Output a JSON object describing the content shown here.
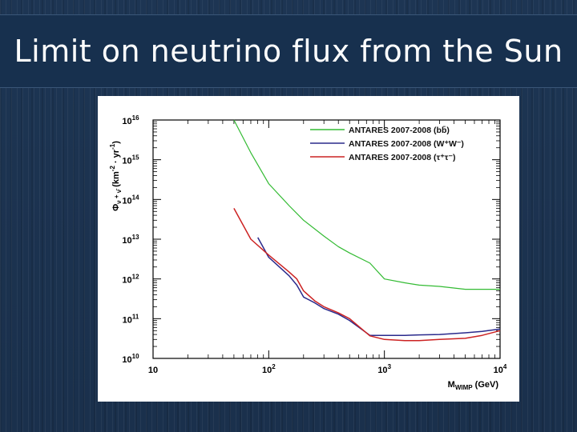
{
  "slide": {
    "title": "Limit on neutrino flux from the Sun"
  },
  "chart_data": {
    "type": "line",
    "xscale": "log",
    "yscale": "log",
    "xlim": [
      10,
      10000
    ],
    "ylim": [
      10000000000.0,
      1e+16
    ],
    "xlabel_main": "M",
    "xlabel_sub": "WIMP",
    "xlabel_unit": " (GeV)",
    "ylabel_main": "Φ",
    "ylabel_sub": "ν",
    "ylabel_mid": " + ",
    "ylabel_sub2": "ν̄",
    "ylabel_unit": " (km",
    "ylabel_unit_sup1": "-2",
    "ylabel_unit_mid": " · yr",
    "ylabel_unit_sup2": "-1",
    "ylabel_unit_end": ")",
    "x_ticks": [
      {
        "value": 10,
        "base": "10",
        "exp": ""
      },
      {
        "value": 100,
        "base": "10",
        "exp": "2"
      },
      {
        "value": 1000,
        "base": "10",
        "exp": "3"
      },
      {
        "value": 10000,
        "base": "10",
        "exp": "4"
      }
    ],
    "y_ticks": [
      {
        "value": 10000000000.0,
        "base": "10",
        "exp": "10"
      },
      {
        "value": 100000000000.0,
        "base": "10",
        "exp": "11"
      },
      {
        "value": 1000000000000.0,
        "base": "10",
        "exp": "12"
      },
      {
        "value": 10000000000000.0,
        "base": "10",
        "exp": "13"
      },
      {
        "value": 100000000000000.0,
        "base": "10",
        "exp": "14"
      },
      {
        "value": 1000000000000000.0,
        "base": "10",
        "exp": "15"
      },
      {
        "value": 1e+16,
        "base": "10",
        "exp": "16"
      }
    ],
    "legend_position": "top-right",
    "series": [
      {
        "name": "ANTARES 2007-2008",
        "channel": "(bb̄)",
        "color": "#33bb33",
        "x": [
          50,
          70,
          100,
          150,
          200,
          300,
          400,
          500,
          750,
          1000,
          1500,
          2000,
          3000,
          5000,
          7000,
          10000
        ],
        "y": [
          1e+16,
          1500000000000000.0,
          250000000000000.0,
          70000000000000.0,
          30000000000000.0,
          12000000000000.0,
          6500000000000.0,
          4500000000000.0,
          2500000000000.0,
          1000000000000.0,
          800000000000.0,
          700000000000.0,
          650000000000.0,
          550000000000.0,
          550000000000.0,
          550000000000.0
        ]
      },
      {
        "name": "ANTARES 2007-2008",
        "channel": "(W⁺W⁻)",
        "color": "#2a2a8c",
        "x": [
          80.4,
          100,
          150,
          175,
          200,
          250,
          300,
          400,
          500,
          750,
          1000,
          1500,
          2000,
          3000,
          5000,
          7000,
          10000
        ],
        "y": [
          11000000000000.0,
          3500000000000.0,
          1200000000000.0,
          700000000000.0,
          350000000000.0,
          250000000000.0,
          180000000000.0,
          130000000000.0,
          90000000000.0,
          38000000000.0,
          38000000000.0,
          38000000000.0,
          39000000000.0,
          40000000000.0,
          44000000000.0,
          48000000000.0,
          55000000000.0
        ]
      },
      {
        "name": "ANTARES 2007-2008",
        "channel": "(τ⁺τ⁻)",
        "color": "#cc2222",
        "x": [
          50,
          70,
          100,
          150,
          175,
          200,
          250,
          300,
          400,
          500,
          750,
          1000,
          1500,
          2000,
          3000,
          5000,
          7000,
          10000
        ],
        "y": [
          60000000000000.0,
          10000000000000.0,
          4000000000000.0,
          1500000000000.0,
          1000000000000.0,
          500000000000.0,
          280000000000.0,
          200000000000.0,
          140000000000.0,
          100000000000.0,
          37000000000.0,
          30000000000.0,
          28000000000.0,
          28000000000.0,
          30000000000.0,
          32000000000.0,
          38000000000.0,
          50000000000.0
        ]
      }
    ]
  }
}
